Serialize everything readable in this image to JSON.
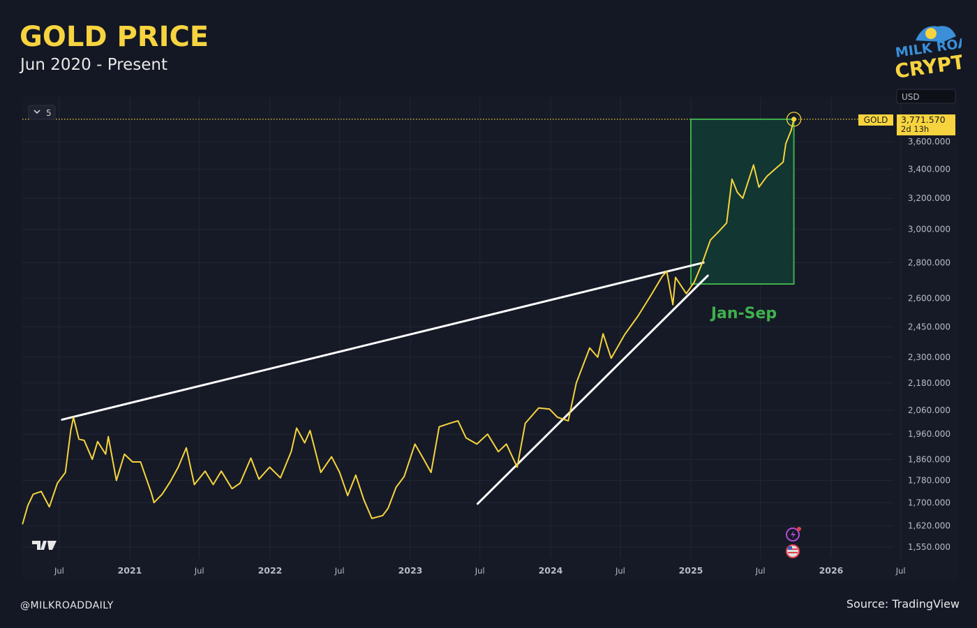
{
  "header": {
    "title": "GOLD PRICE",
    "subtitle": "Jun 2020 - Present"
  },
  "logo": {
    "text": "MILK ROAD CRYPTO"
  },
  "legend_collapse": {
    "label": "5"
  },
  "price_tag": {
    "symbol": "GOLD",
    "value": "3,771.570",
    "countdown": "2d 13h"
  },
  "annotation": {
    "label": "Jan-Sep",
    "color": "#3fb04d"
  },
  "footer": {
    "handle": "@MILKROADDAILY",
    "source": "Source: TradingView"
  },
  "colors": {
    "line": "#f7d43f",
    "trendline": "#ffffff",
    "background": "#141824",
    "box_fill": "#123a33",
    "box_stroke": "#3fb04d"
  },
  "chart_data": {
    "type": "line",
    "title": "GOLD PRICE",
    "subtitle": "Jun 2020 - Present",
    "y_scale": "log",
    "ylim": [
      1510,
      3900
    ],
    "currency": "USD",
    "grid": true,
    "x_ticks": [
      {
        "date": "2020-07-01",
        "label": "Jul"
      },
      {
        "date": "2021-01-01",
        "label": "2021"
      },
      {
        "date": "2021-07-01",
        "label": "Jul"
      },
      {
        "date": "2022-01-01",
        "label": "2022"
      },
      {
        "date": "2022-07-01",
        "label": "Jul"
      },
      {
        "date": "2023-01-01",
        "label": "2023"
      },
      {
        "date": "2023-07-01",
        "label": "Jul"
      },
      {
        "date": "2024-01-01",
        "label": "2024"
      },
      {
        "date": "2024-07-01",
        "label": "Jul"
      },
      {
        "date": "2025-01-01",
        "label": "2025"
      },
      {
        "date": "2025-07-01",
        "label": "Jul"
      },
      {
        "date": "2026-01-01",
        "label": "2026"
      },
      {
        "date": "2026-07-01",
        "label": "Jul"
      }
    ],
    "y_ticks": [
      {
        "value": 3600,
        "label": "3,600.000"
      },
      {
        "value": 3400,
        "label": "3,400.000"
      },
      {
        "value": 3200,
        "label": "3,200.000"
      },
      {
        "value": 3000,
        "label": "3,000.000"
      },
      {
        "value": 2800,
        "label": "2,800.000"
      },
      {
        "value": 2600,
        "label": "2,600.000"
      },
      {
        "value": 2450,
        "label": "2,450.000"
      },
      {
        "value": 2300,
        "label": "2,300.000"
      },
      {
        "value": 2180,
        "label": "2,180.000"
      },
      {
        "value": 2060,
        "label": "2,060.000"
      },
      {
        "value": 1960,
        "label": "1,960.000"
      },
      {
        "value": 1860,
        "label": "1,860.000"
      },
      {
        "value": 1780,
        "label": "1,780.000"
      },
      {
        "value": 1700,
        "label": "1,700.000"
      },
      {
        "value": 1620,
        "label": "1,620.000"
      },
      {
        "value": 1550,
        "label": "1,550.000"
      }
    ],
    "series": [
      {
        "points": [
          [
            "2020-03-27",
            1625
          ],
          [
            "2020-04-10",
            1690
          ],
          [
            "2020-04-24",
            1730
          ],
          [
            "2020-05-15",
            1740
          ],
          [
            "2020-06-05",
            1685
          ],
          [
            "2020-06-26",
            1770
          ],
          [
            "2020-07-17",
            1810
          ],
          [
            "2020-07-31",
            1975
          ],
          [
            "2020-08-07",
            2030
          ],
          [
            "2020-08-21",
            1940
          ],
          [
            "2020-09-04",
            1935
          ],
          [
            "2020-09-25",
            1860
          ],
          [
            "2020-10-09",
            1930
          ],
          [
            "2020-10-30",
            1880
          ],
          [
            "2020-11-06",
            1950
          ],
          [
            "2020-11-27",
            1780
          ],
          [
            "2020-12-18",
            1880
          ],
          [
            "2021-01-08",
            1850
          ],
          [
            "2021-01-29",
            1850
          ],
          [
            "2021-02-26",
            1735
          ],
          [
            "2021-03-05",
            1700
          ],
          [
            "2021-03-26",
            1730
          ],
          [
            "2021-04-16",
            1775
          ],
          [
            "2021-05-07",
            1830
          ],
          [
            "2021-05-28",
            1905
          ],
          [
            "2021-06-18",
            1765
          ],
          [
            "2021-07-16",
            1815
          ],
          [
            "2021-08-06",
            1765
          ],
          [
            "2021-08-27",
            1815
          ],
          [
            "2021-09-24",
            1750
          ],
          [
            "2021-10-15",
            1770
          ],
          [
            "2021-11-12",
            1865
          ],
          [
            "2021-12-03",
            1785
          ],
          [
            "2021-12-31",
            1830
          ],
          [
            "2022-01-28",
            1790
          ],
          [
            "2022-02-25",
            1890
          ],
          [
            "2022-03-11",
            1985
          ],
          [
            "2022-04-01",
            1925
          ],
          [
            "2022-04-15",
            1975
          ],
          [
            "2022-05-13",
            1810
          ],
          [
            "2022-06-10",
            1870
          ],
          [
            "2022-07-01",
            1810
          ],
          [
            "2022-07-22",
            1725
          ],
          [
            "2022-08-12",
            1800
          ],
          [
            "2022-09-02",
            1710
          ],
          [
            "2022-09-23",
            1645
          ],
          [
            "2022-10-21",
            1655
          ],
          [
            "2022-11-04",
            1680
          ],
          [
            "2022-11-25",
            1755
          ],
          [
            "2022-12-16",
            1795
          ],
          [
            "2023-01-13",
            1920
          ],
          [
            "2023-02-03",
            1865
          ],
          [
            "2023-02-24",
            1810
          ],
          [
            "2023-03-17",
            1990
          ],
          [
            "2023-04-14",
            2005
          ],
          [
            "2023-05-05",
            2015
          ],
          [
            "2023-05-26",
            1945
          ],
          [
            "2023-06-23",
            1920
          ],
          [
            "2023-07-21",
            1960
          ],
          [
            "2023-08-18",
            1890
          ],
          [
            "2023-09-08",
            1920
          ],
          [
            "2023-10-06",
            1830
          ],
          [
            "2023-10-27",
            2005
          ],
          [
            "2023-12-01",
            2070
          ],
          [
            "2023-12-29",
            2065
          ],
          [
            "2024-01-19",
            2030
          ],
          [
            "2024-02-16",
            2015
          ],
          [
            "2024-03-08",
            2180
          ],
          [
            "2024-04-12",
            2345
          ],
          [
            "2024-05-03",
            2300
          ],
          [
            "2024-05-17",
            2415
          ],
          [
            "2024-06-07",
            2295
          ],
          [
            "2024-07-12",
            2410
          ],
          [
            "2024-08-16",
            2505
          ],
          [
            "2024-09-20",
            2620
          ],
          [
            "2024-10-18",
            2720
          ],
          [
            "2024-10-30",
            2750
          ],
          [
            "2024-11-15",
            2565
          ],
          [
            "2024-11-22",
            2715
          ],
          [
            "2024-12-20",
            2625
          ],
          [
            "2025-01-10",
            2690
          ],
          [
            "2025-01-31",
            2800
          ],
          [
            "2025-02-21",
            2935
          ],
          [
            "2025-03-14",
            2985
          ],
          [
            "2025-04-04",
            3040
          ],
          [
            "2025-04-18",
            3330
          ],
          [
            "2025-05-02",
            3240
          ],
          [
            "2025-05-16",
            3200
          ],
          [
            "2025-06-13",
            3430
          ],
          [
            "2025-06-27",
            3275
          ],
          [
            "2025-07-18",
            3350
          ],
          [
            "2025-08-08",
            3400
          ],
          [
            "2025-08-29",
            3450
          ],
          [
            "2025-09-05",
            3585
          ],
          [
            "2025-09-19",
            3685
          ],
          [
            "2025-09-26",
            3771.57
          ]
        ]
      }
    ],
    "trendlines": [
      {
        "from": [
          "2020-07-08",
          2020
        ],
        "to": [
          "2025-02-03",
          2800
        ]
      },
      {
        "from": [
          "2023-06-25",
          1696
        ],
        "to": [
          "2025-02-14",
          2725
        ]
      }
    ],
    "highlight_box": {
      "from": "2025-01-01",
      "to": "2025-09-26",
      "low": 2678,
      "high": 3771.57,
      "label": "Jan-Sep"
    },
    "last_value": 3771.57
  }
}
